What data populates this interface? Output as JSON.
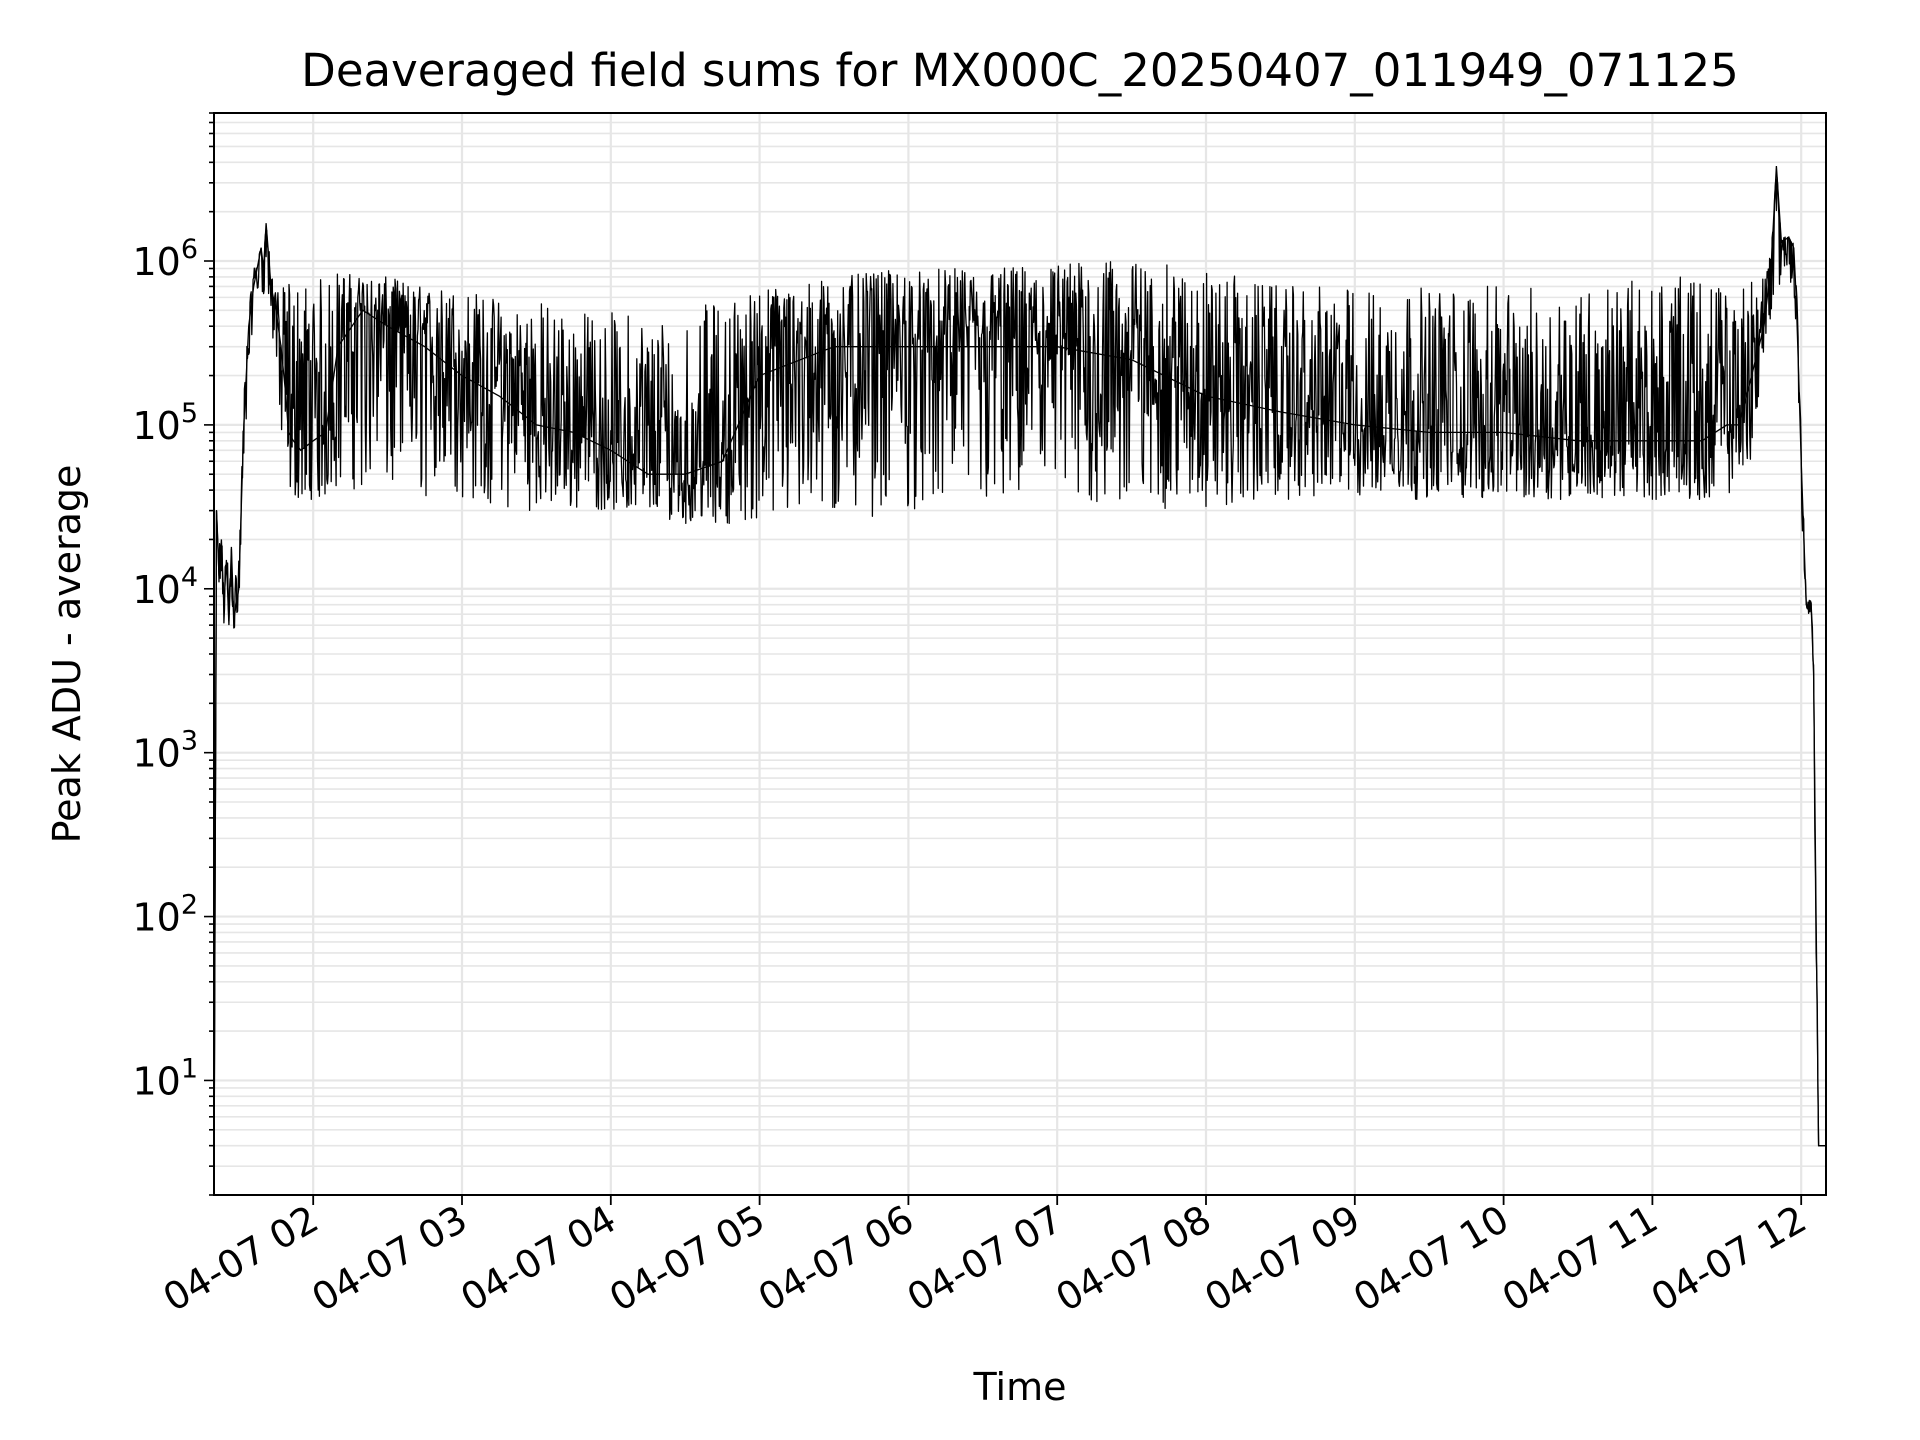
{
  "chart_data": {
    "type": "line",
    "title": "Deaveraged field sums for MX000C_20250407_011949_071125",
    "xlabel": "Time",
    "ylabel": "Peak ADU - average",
    "yscale": "log",
    "ylim": [
      2,
      8000000
    ],
    "xlim": [
      "2025-04-07T01:20",
      "2025-04-07T12:10"
    ],
    "grid": true,
    "line_color": "#000000",
    "grid_color": "#e6e6e6",
    "x_ticks": [
      {
        "t": "2025-04-07T02:00",
        "label": "04-07 02"
      },
      {
        "t": "2025-04-07T03:00",
        "label": "04-07 03"
      },
      {
        "t": "2025-04-07T04:00",
        "label": "04-07 04"
      },
      {
        "t": "2025-04-07T05:00",
        "label": "04-07 05"
      },
      {
        "t": "2025-04-07T06:00",
        "label": "04-07 06"
      },
      {
        "t": "2025-04-07T07:00",
        "label": "04-07 07"
      },
      {
        "t": "2025-04-07T08:00",
        "label": "04-07 08"
      },
      {
        "t": "2025-04-07T09:00",
        "label": "04-07 09"
      },
      {
        "t": "2025-04-07T10:00",
        "label": "04-07 10"
      },
      {
        "t": "2025-04-07T11:00",
        "label": "04-07 11"
      },
      {
        "t": "2025-04-07T12:00",
        "label": "04-07 12"
      }
    ],
    "y_ticks": [
      {
        "value": 10,
        "base": "10",
        "exp": "1"
      },
      {
        "value": 100,
        "base": "10",
        "exp": "2"
      },
      {
        "value": 1000,
        "base": "10",
        "exp": "3"
      },
      {
        "value": 10000,
        "base": "10",
        "exp": "4"
      },
      {
        "value": 100000,
        "base": "10",
        "exp": "5"
      },
      {
        "value": 1000000,
        "base": "10",
        "exp": "6"
      }
    ],
    "series": [
      {
        "x": [
          "2025-04-07T01:20",
          "2025-04-07T01:21",
          "2025-04-07T01:22",
          "2025-04-07T01:23",
          "2025-04-07T01:24",
          "2025-04-07T01:25",
          "2025-04-07T01:26",
          "2025-04-07T01:27",
          "2025-04-07T01:28",
          "2025-04-07T01:30",
          "2025-04-07T01:32",
          "2025-04-07T01:34",
          "2025-04-07T01:36",
          "2025-04-07T01:38",
          "2025-04-07T01:39",
          "2025-04-07T01:40",
          "2025-04-07T01:41",
          "2025-04-07T01:43",
          "2025-04-07T01:45",
          "2025-04-07T01:47",
          "2025-04-07T01:49",
          "2025-04-07T01:50",
          "2025-04-07T01:52",
          "2025-04-07T01:55",
          "2025-04-07T02:00",
          "2025-04-07T02:05",
          "2025-04-07T02:10",
          "2025-04-07T02:20",
          "2025-04-07T02:30",
          "2025-04-07T02:45",
          "2025-04-07T03:00",
          "2025-04-07T03:15",
          "2025-04-07T03:30",
          "2025-04-07T03:45",
          "2025-04-07T04:00",
          "2025-04-07T04:15",
          "2025-04-07T04:30",
          "2025-04-07T04:45",
          "2025-04-07T05:00",
          "2025-04-07T05:30",
          "2025-04-07T06:00",
          "2025-04-07T06:30",
          "2025-04-07T07:00",
          "2025-04-07T07:30",
          "2025-04-07T08:00",
          "2025-04-07T08:30",
          "2025-04-07T09:00",
          "2025-04-07T09:30",
          "2025-04-07T10:00",
          "2025-04-07T10:30",
          "2025-04-07T11:00",
          "2025-04-07T11:20",
          "2025-04-07T11:30",
          "2025-04-07T11:35",
          "2025-04-07T11:40",
          "2025-04-07T11:45",
          "2025-04-07T11:48",
          "2025-04-07T11:50",
          "2025-04-07T11:52",
          "2025-04-07T11:55",
          "2025-04-07T11:57",
          "2025-04-07T11:58",
          "2025-04-07T11:59",
          "2025-04-07T12:00",
          "2025-04-07T12:02",
          "2025-04-07T12:03",
          "2025-04-07T12:04",
          "2025-04-07T12:05",
          "2025-04-07T12:06",
          "2025-04-07T12:07",
          "2025-04-07T12:08",
          "2025-04-07T12:10"
        ],
        "y": [
          2,
          30000,
          12000,
          20000,
          8000,
          15000,
          6000,
          18000,
          6500,
          10000,
          100000,
          400000,
          700000,
          1000000,
          1200000,
          900000,
          1700000,
          700000,
          500000,
          300000,
          150000,
          90000,
          80000,
          70000,
          80000,
          90000,
          300000,
          500000,
          400000,
          300000,
          200000,
          150000,
          100000,
          90000,
          70000,
          50000,
          50000,
          60000,
          200000,
          300000,
          300000,
          300000,
          300000,
          250000,
          150000,
          120000,
          100000,
          90000,
          90000,
          80000,
          80000,
          80000,
          100000,
          100000,
          200000,
          400000,
          1000000,
          3800000,
          1300000,
          1400000,
          1200000,
          600000,
          200000,
          60000,
          8000,
          7500,
          8000,
          3000,
          100,
          4,
          4,
          4
        ],
        "band_low": [
          2,
          3000,
          8000,
          10000,
          5500,
          8000,
          5500,
          10000,
          5500,
          6000,
          40000,
          200000,
          500000,
          600000,
          700000,
          600000,
          700000,
          400000,
          200000,
          50000,
          40000,
          40000,
          35000,
          35000,
          35000,
          35000,
          40000,
          40000,
          35000,
          35000,
          35000,
          30000,
          30000,
          30000,
          30000,
          28000,
          25000,
          25000,
          25000,
          25000,
          30000,
          30000,
          30000,
          30000,
          30000,
          35000,
          35000,
          35000,
          35000,
          35000,
          35000,
          35000,
          35000,
          50000,
          60000,
          200000,
          500000,
          600000,
          800000,
          800000,
          600000,
          300000,
          100000,
          30000,
          7000,
          7000,
          7000,
          2000,
          50,
          4,
          4,
          4
        ],
        "band_high": [
          2,
          30000,
          20000,
          20000,
          15000,
          20000,
          12000,
          20000,
          12000,
          15000,
          150000,
          500000,
          900000,
          1100000,
          1200000,
          1000000,
          1700000,
          900000,
          700000,
          600000,
          800000,
          800000,
          800000,
          800000,
          800000,
          800000,
          900000,
          800000,
          800000,
          700000,
          700000,
          600000,
          600000,
          500000,
          500000,
          500000,
          500000,
          600000,
          700000,
          800000,
          900000,
          900000,
          1000000,
          1000000,
          900000,
          700000,
          700000,
          700000,
          700000,
          700000,
          800000,
          800000,
          700000,
          700000,
          800000,
          900000,
          1200000,
          3800000,
          1400000,
          1400000,
          1300000,
          800000,
          300000,
          80000,
          9000,
          8500,
          8500,
          4000,
          200,
          4,
          4,
          4
        ]
      }
    ]
  }
}
